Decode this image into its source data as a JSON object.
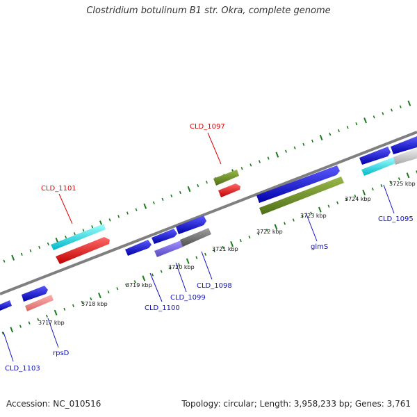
{
  "title": "Clostridium botulinum B1 str. Okra, complete genome",
  "footer": {
    "accession": "Accession: NC_010516",
    "summary": "Topology: circular; Length: 3,958,233 bp; Genes: 3,761"
  },
  "colors": {
    "backbone": "#7f7f7f",
    "tick": "#1a7a1a",
    "label_red": "#e00000",
    "label_blue": "#1010c0"
  },
  "ticks": [
    {
      "label": "3717 kbp"
    },
    {
      "label": "3718 kbp"
    },
    {
      "label": "3719 kbp"
    },
    {
      "label": "3720 kbp"
    },
    {
      "label": "3721 kbp"
    },
    {
      "label": "3722 kbp"
    },
    {
      "label": "3723 kbp"
    },
    {
      "label": "3724 kbp"
    },
    {
      "label": "3725 kbp"
    }
  ],
  "features": [
    {
      "id": "CLD_1101",
      "color": "#e00000"
    },
    {
      "id": "CLD_1097",
      "color": "#e00000"
    },
    {
      "id": "CLD_1103",
      "color": "#1010c0"
    },
    {
      "id": "rpsD",
      "color": "#1010c0"
    },
    {
      "id": "CLD_1100",
      "color": "#1010c0"
    },
    {
      "id": "CLD_1099",
      "color": "#1010c0"
    },
    {
      "id": "CLD_1098",
      "color": "#1010c0"
    },
    {
      "id": "glmS",
      "color": "#1010c0"
    },
    {
      "id": "CLD_1095",
      "color": "#1010c0"
    }
  ]
}
